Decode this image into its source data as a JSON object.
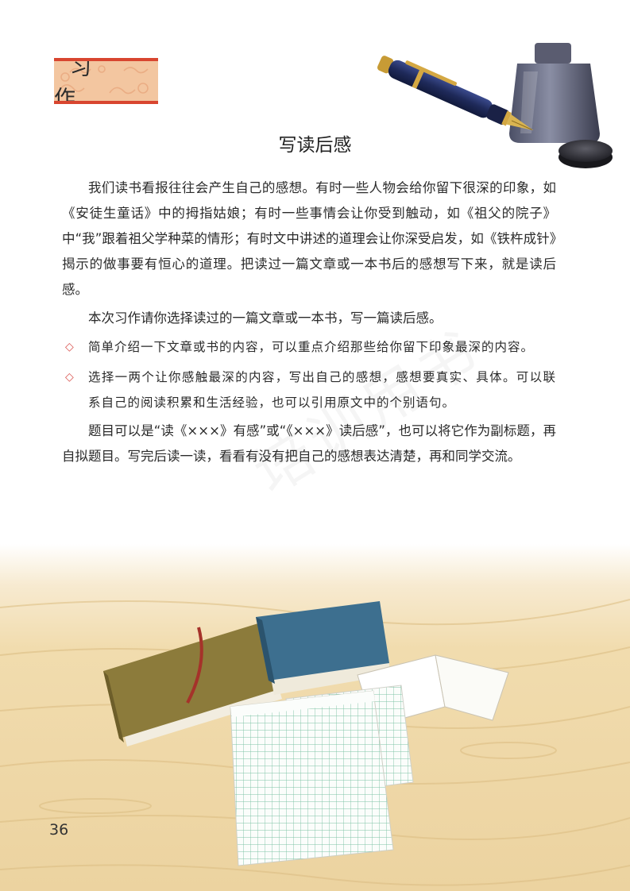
{
  "section_label": "习 作",
  "title": "写读后感",
  "paragraphs": [
    "我们读书看报往往会产生自己的感想。有时一些人物会给你留下很深的印象，如《安徒生童话》中的拇指姑娘；有时一些事情会让你受到触动，如《祖父的院子》中“我”跟着祖父学种菜的情形；有时文中讲述的道理会让你深受启发，如《铁杵成针》揭示的做事要有恒心的道理。把读过一篇文章或一本书后的感想写下来，就是读后感。",
    "本次习作请你选择读过的一篇文章或一本书，写一篇读后感。"
  ],
  "bullets": [
    "简单介绍一下文章或书的内容，可以重点介绍那些给你留下印象最深的内容。",
    "选择一两个让你感触最深的内容，写出自己的感想，感想要真实、具体。可以联系自己的阅读积累和生活经验，也可以引用原文中的个别语句。"
  ],
  "closing_paragraph": "题目可以是“读《×××》有感”或“《×××》读后感”，也可以将它作为副标题，再自拟题目。写完后读一读，看看有没有把自己的感想表达清楚，再和同学交流。",
  "watermark": "培训用书",
  "page_number": "36",
  "colors": {
    "badge_fill": "#f3c6a0",
    "badge_border": "#d8452f",
    "bullet_diamond": "#d9534f",
    "wood": "#f1dcae"
  }
}
